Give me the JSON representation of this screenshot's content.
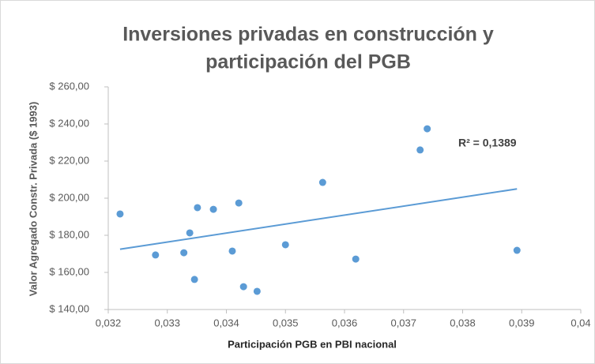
{
  "chart_data": {
    "type": "scatter",
    "title": [
      "Inversiones privadas en construcción y",
      "participación del PGB"
    ],
    "xlabel": "Participación PGB en PBI nacional",
    "ylabel": "Valor Agregado Constr. Privada ($ 1993)",
    "color": "#5b9bd5",
    "x": [
      0.0322,
      0.0328,
      0.03328,
      0.03338,
      0.03346,
      0.03351,
      0.03378,
      0.0341,
      0.03421,
      0.03429,
      0.03452,
      0.035,
      0.03563,
      0.03619,
      0.03728,
      0.0374,
      0.03892
    ],
    "values": [
      191.5,
      169.4,
      170.6,
      181.3,
      156.2,
      194.9,
      194.0,
      171.5,
      197.4,
      152.3,
      149.8,
      174.9,
      208.5,
      167.2,
      226.0,
      237.4,
      171.9
    ],
    "trendline": {
      "x": [
        0.0322,
        0.03892
      ],
      "y": [
        172.5,
        205.0
      ],
      "color": "#5b9bd5"
    },
    "annotation": "R² = 0,1389",
    "xlim": [
      0.032,
      0.04
    ],
    "ylim": [
      140,
      260
    ],
    "xticks": [
      {
        "value": 0.032,
        "label": "0,032"
      },
      {
        "value": 0.033,
        "label": "0,033"
      },
      {
        "value": 0.034,
        "label": "0,034"
      },
      {
        "value": 0.035,
        "label": "0,035"
      },
      {
        "value": 0.036,
        "label": "0,036"
      },
      {
        "value": 0.037,
        "label": "0,037"
      },
      {
        "value": 0.038,
        "label": "0,038"
      },
      {
        "value": 0.039,
        "label": "0,039"
      },
      {
        "value": 0.04,
        "label": "0,04"
      }
    ],
    "yticks": [
      {
        "value": 140,
        "label": "$ 140,00"
      },
      {
        "value": 160,
        "label": "$ 160,00"
      },
      {
        "value": 180,
        "label": "$ 180,00"
      },
      {
        "value": 200,
        "label": "$ 200,00"
      },
      {
        "value": 220,
        "label": "$ 220,00"
      },
      {
        "value": 240,
        "label": "$ 240,00"
      },
      {
        "value": 260,
        "label": "$ 260,00"
      }
    ],
    "grid": false
  }
}
